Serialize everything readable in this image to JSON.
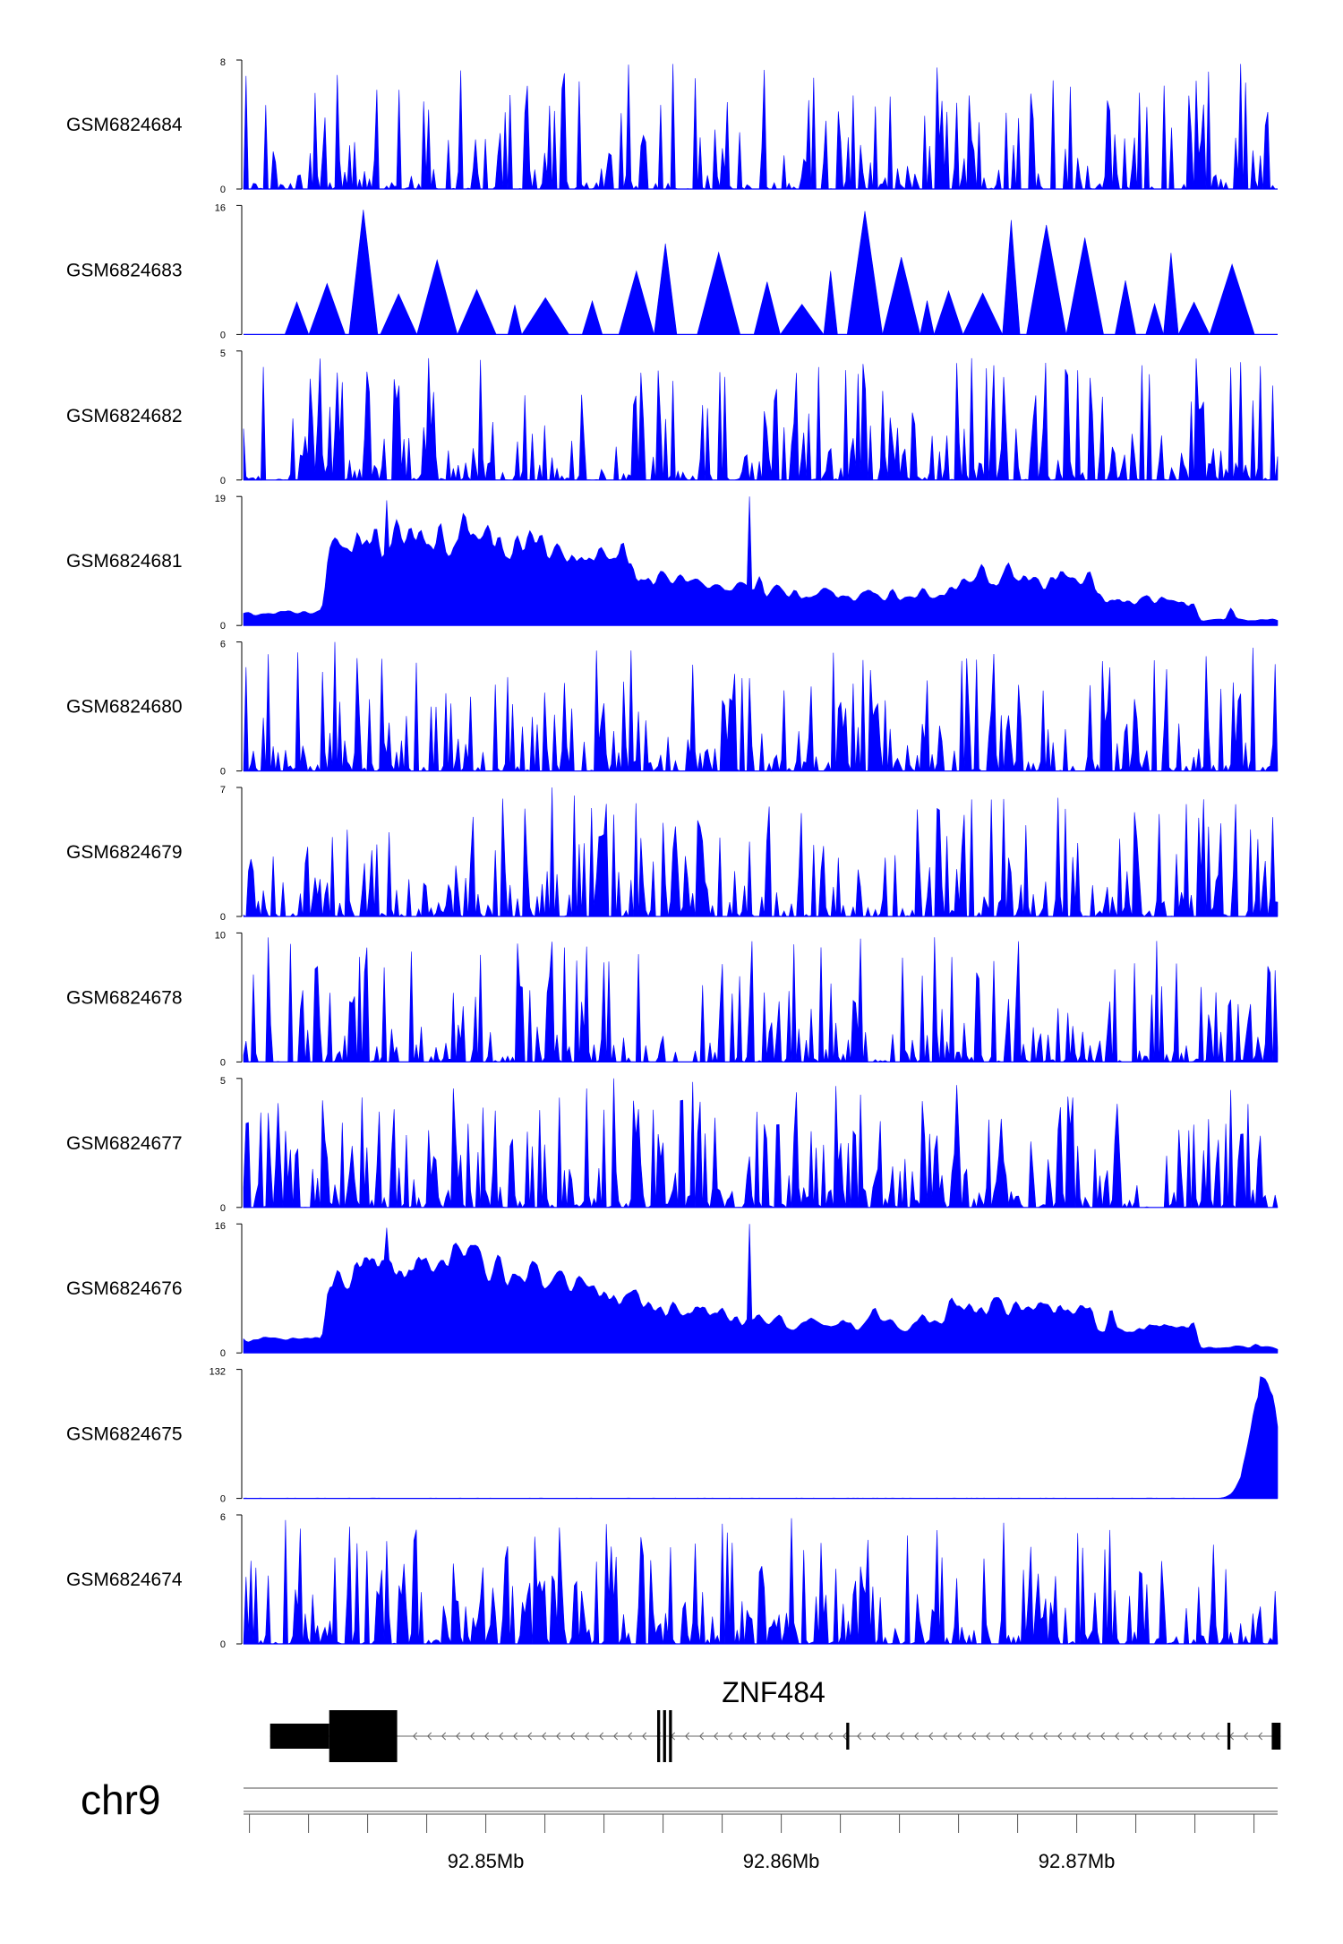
{
  "chart_data": {
    "type": "area",
    "chromosome": "chr9",
    "x_range_mb": [
      92.8418,
      92.8768
    ],
    "axis": {
      "tick_step_mb": 0.002,
      "labels": [
        {
          "mb": 92.85,
          "text": "92.85Mb"
        },
        {
          "mb": 92.86,
          "text": "92.86Mb"
        },
        {
          "mb": 92.87,
          "text": "92.87Mb"
        }
      ]
    },
    "gene": {
      "name": "ZNF484",
      "strand": "-",
      "thick_exons_mb": [
        [
          92.8427,
          92.8447
        ],
        [
          92.8447,
          92.847
        ]
      ],
      "thin_exons_mb": [
        [
          92.8558,
          92.8559
        ],
        [
          92.856,
          92.8561
        ],
        [
          92.8562,
          92.8563
        ],
        [
          92.8622,
          92.8623
        ],
        [
          92.8751,
          92.8752
        ],
        [
          92.8766,
          92.8769
        ]
      ]
    },
    "color": "#0000ff",
    "tracks": [
      {
        "name": "GSM6824684",
        "ymax": 8,
        "ymin": 0,
        "seed": 101,
        "profile": "peaky",
        "sparse": 0.35,
        "smooth": 0
      },
      {
        "name": "GSM6824683",
        "ymax": 16,
        "ymin": 0,
        "seed": 202,
        "profile": "triangles"
      },
      {
        "name": "GSM6824682",
        "ymax": 5,
        "ymin": 0,
        "seed": 303,
        "profile": "peaky",
        "sparse": 0.2,
        "smooth": 0
      },
      {
        "name": "GSM6824681",
        "ymax": 19,
        "ymin": 0,
        "seed": 404,
        "profile": "dense",
        "smooth": 2
      },
      {
        "name": "GSM6824680",
        "ymax": 6,
        "ymin": 0,
        "seed": 505,
        "profile": "peaky",
        "sparse": 0.25,
        "smooth": 0
      },
      {
        "name": "GSM6824679",
        "ymax": 7,
        "ymin": 0,
        "seed": 606,
        "profile": "peaky",
        "sparse": 0.22,
        "smooth": 0
      },
      {
        "name": "GSM6824678",
        "ymax": 10,
        "ymin": 0,
        "seed": 707,
        "profile": "peaky",
        "sparse": 0.3,
        "smooth": 0
      },
      {
        "name": "GSM6824677",
        "ymax": 5,
        "ymin": 0,
        "seed": 808,
        "profile": "peaky",
        "sparse": 0.15,
        "smooth": 0
      },
      {
        "name": "GSM6824676",
        "ymax": 16,
        "ymin": 0,
        "seed": 909,
        "profile": "dense",
        "smooth": 2
      },
      {
        "name": "GSM6824675",
        "ymax": 132,
        "ymin": 0,
        "seed": 1010,
        "profile": "endpeak"
      },
      {
        "name": "GSM6824674",
        "ymax": 6,
        "ymin": 0,
        "seed": 1111,
        "profile": "peaky",
        "sparse": 0.18,
        "smooth": 0
      }
    ]
  }
}
